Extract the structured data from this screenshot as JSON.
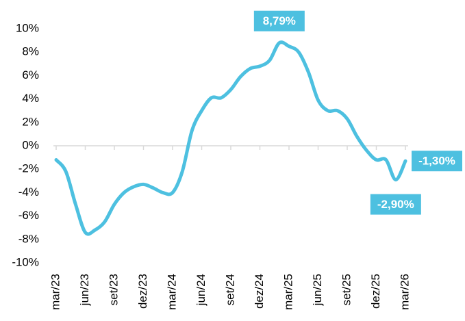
{
  "chart_data": {
    "type": "line",
    "categories": [
      "mar/23",
      null,
      null,
      "jun/23",
      null,
      null,
      "set/23",
      null,
      null,
      "dez/23",
      null,
      null,
      "mar/24",
      null,
      null,
      "jun/24",
      null,
      null,
      "set/24",
      null,
      null,
      "dez/24",
      null,
      null,
      "mar/25",
      null,
      null,
      "jun/25",
      null,
      null,
      "set/25",
      null,
      null,
      "dez/25",
      null,
      null,
      "mar/26"
    ],
    "series": [
      {
        "color": "#4dc0e0",
        "values": [
          -1.2,
          -2.2,
          -5.0,
          -7.4,
          -7.2,
          -6.5,
          -5.0,
          -4.0,
          -3.5,
          -3.3,
          -3.6,
          -4.0,
          -4.0,
          -2.2,
          1.3,
          3.0,
          4.1,
          4.1,
          4.8,
          5.9,
          6.6,
          6.8,
          7.3,
          8.79,
          8.5,
          8.0,
          6.3,
          3.9,
          3.0,
          3.0,
          2.3,
          0.8,
          -0.4,
          -1.2,
          -1.2,
          -2.9,
          -1.3
        ],
        "value_labels": [
          null,
          null,
          null,
          null,
          null,
          null,
          null,
          null,
          null,
          null,
          null,
          null,
          null,
          null,
          null,
          null,
          null,
          null,
          null,
          null,
          null,
          null,
          null,
          "8,79%",
          null,
          null,
          null,
          null,
          null,
          null,
          null,
          null,
          null,
          null,
          null,
          "-2,90%",
          "-1,30%"
        ]
      }
    ],
    "ylim": [
      -10,
      10
    ],
    "yticks": [
      {
        "value": -10,
        "label": "-10%"
      },
      {
        "value": -8,
        "label": "-8%"
      },
      {
        "value": -6,
        "label": "-6%"
      },
      {
        "value": -4,
        "label": "-4%"
      },
      {
        "value": -2,
        "label": "-2%"
      },
      {
        "value": 0,
        "label": "0%"
      },
      {
        "value": 2,
        "label": "2%"
      },
      {
        "value": 4,
        "label": "4%"
      },
      {
        "value": 6,
        "label": "6%"
      },
      {
        "value": 8,
        "label": "8%"
      },
      {
        "value": 10,
        "label": "10%"
      }
    ],
    "grid": false
  }
}
